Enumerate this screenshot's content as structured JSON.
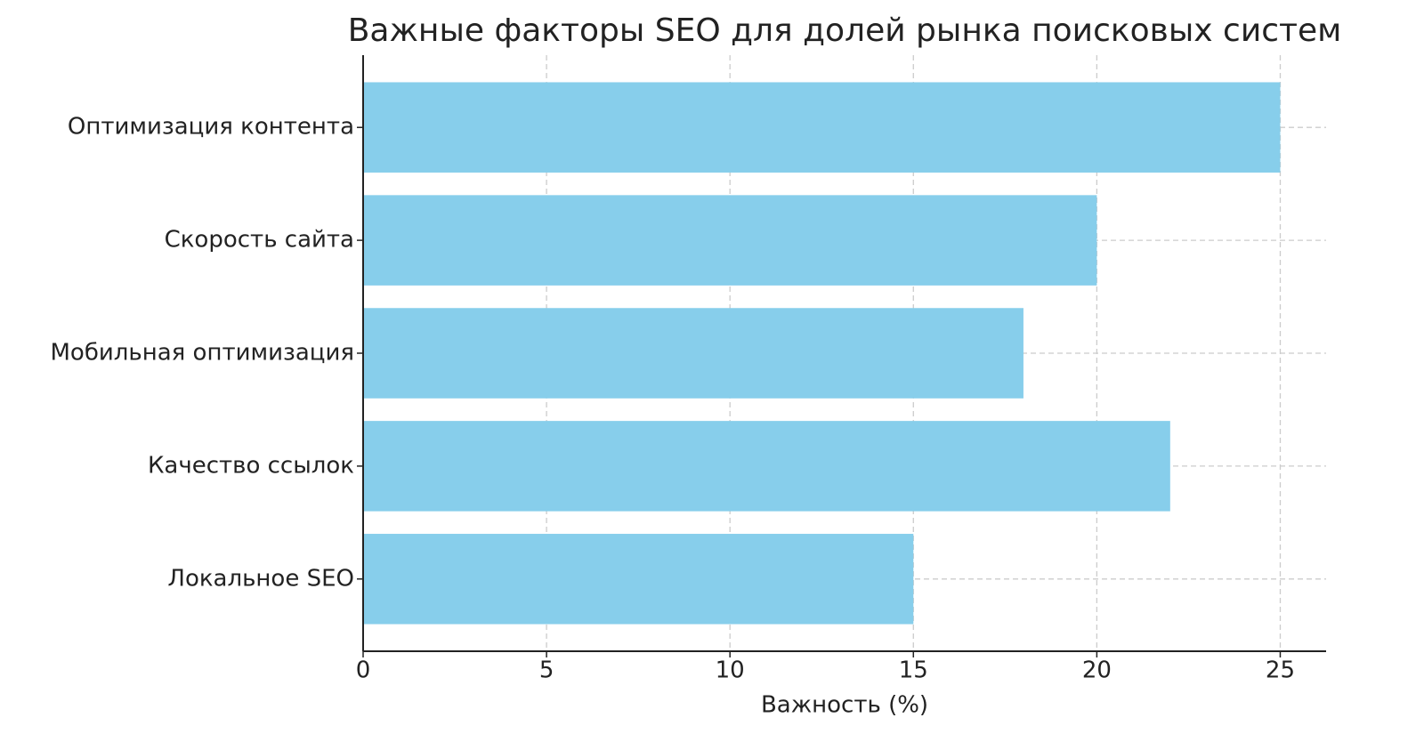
{
  "chart_data": {
    "type": "barh",
    "title": "Важные факторы SEO для долей рынка поисковых систем",
    "x_label": "Важность (%)",
    "categories": [
      "Оптимизация контента",
      "Скорость сайта",
      "Мобильная оптимизация",
      "Качество ссылок",
      "Локальное SEO"
    ],
    "values": [
      25,
      20,
      18,
      22,
      15
    ],
    "color": "#87ceeb",
    "xlim": [
      0,
      26.25
    ],
    "xticks": [
      0,
      5,
      10,
      15,
      20,
      25
    ],
    "grid": true
  }
}
